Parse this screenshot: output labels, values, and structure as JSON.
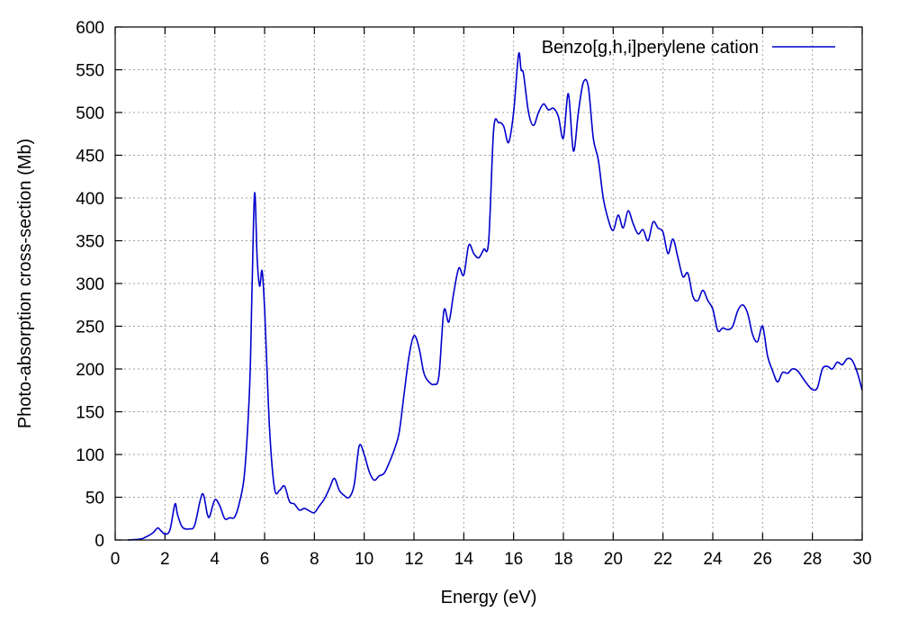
{
  "chart_data": {
    "type": "line",
    "title": "",
    "xlabel": "Energy (eV)",
    "ylabel": "Photo-absorption cross-section (Mb)",
    "xlim": [
      0,
      30
    ],
    "ylim": [
      0,
      600
    ],
    "xticks": [
      0,
      2,
      4,
      6,
      8,
      10,
      12,
      14,
      16,
      18,
      20,
      22,
      24,
      26,
      28,
      30
    ],
    "yticks": [
      0,
      50,
      100,
      150,
      200,
      250,
      300,
      350,
      400,
      450,
      500,
      550,
      600
    ],
    "grid": true,
    "legend_position": "top-right",
    "series": [
      {
        "name": "Benzo[g,h,i]perylene cation",
        "color": "#0000cc",
        "x": [
          0.5,
          1.0,
          1.2,
          1.5,
          1.7,
          1.8,
          2.0,
          2.2,
          2.4,
          2.5,
          2.7,
          3.0,
          3.2,
          3.5,
          3.7,
          3.8,
          4.0,
          4.2,
          4.4,
          4.6,
          4.8,
          5.0,
          5.2,
          5.4,
          5.5,
          5.6,
          5.7,
          5.8,
          5.9,
          6.0,
          6.2,
          6.4,
          6.6,
          6.8,
          7.0,
          7.2,
          7.4,
          7.6,
          7.8,
          8.0,
          8.2,
          8.4,
          8.6,
          8.8,
          9.0,
          9.2,
          9.4,
          9.6,
          9.8,
          10.0,
          10.2,
          10.4,
          10.6,
          10.8,
          11.0,
          11.2,
          11.4,
          11.6,
          11.8,
          12.0,
          12.2,
          12.4,
          12.6,
          12.8,
          13.0,
          13.2,
          13.4,
          13.6,
          13.8,
          14.0,
          14.2,
          14.4,
          14.6,
          14.8,
          15.0,
          15.2,
          15.4,
          15.6,
          15.8,
          16.0,
          16.2,
          16.3,
          16.4,
          16.6,
          16.8,
          17.0,
          17.2,
          17.4,
          17.6,
          17.8,
          18.0,
          18.2,
          18.4,
          18.6,
          18.8,
          19.0,
          19.2,
          19.4,
          19.6,
          19.8,
          20.0,
          20.2,
          20.4,
          20.6,
          20.8,
          21.0,
          21.2,
          21.4,
          21.6,
          21.8,
          22.0,
          22.2,
          22.4,
          22.6,
          22.8,
          23.0,
          23.2,
          23.4,
          23.6,
          23.8,
          24.0,
          24.2,
          24.4,
          24.6,
          24.8,
          25.0,
          25.2,
          25.4,
          25.6,
          25.8,
          26.0,
          26.2,
          26.4,
          26.6,
          26.8,
          27.0,
          27.2,
          27.4,
          27.6,
          27.8,
          28.0,
          28.2,
          28.4,
          28.6,
          28.8,
          29.0,
          29.2,
          29.4,
          29.6,
          29.8,
          30.0
        ],
        "y": [
          0,
          1,
          3,
          8,
          14,
          12,
          7,
          12,
          42,
          30,
          15,
          13,
          18,
          54,
          30,
          28,
          47,
          40,
          25,
          26,
          27,
          45,
          80,
          180,
          300,
          406,
          330,
          297,
          315,
          270,
          130,
          60,
          58,
          63,
          45,
          42,
          35,
          37,
          34,
          32,
          40,
          48,
          60,
          72,
          58,
          52,
          50,
          65,
          110,
          100,
          80,
          70,
          75,
          78,
          90,
          105,
          125,
          170,
          215,
          239,
          225,
          195,
          185,
          182,
          192,
          268,
          255,
          290,
          318,
          310,
          345,
          335,
          330,
          340,
          350,
          480,
          488,
          484,
          465,
          500,
          568,
          550,
          545,
          500,
          485,
          500,
          510,
          503,
          505,
          495,
          470,
          522,
          455,
          500,
          535,
          530,
          470,
          445,
          400,
          375,
          362,
          380,
          365,
          385,
          370,
          358,
          363,
          350,
          372,
          365,
          360,
          335,
          352,
          330,
          308,
          312,
          285,
          280,
          292,
          280,
          270,
          245,
          248,
          246,
          250,
          268,
          275,
          265,
          240,
          232,
          250,
          215,
          198,
          185,
          196,
          195,
          200,
          198,
          190,
          182,
          176,
          178,
          200,
          203,
          200,
          208,
          205,
          212,
          210,
          196,
          175
        ]
      }
    ]
  }
}
